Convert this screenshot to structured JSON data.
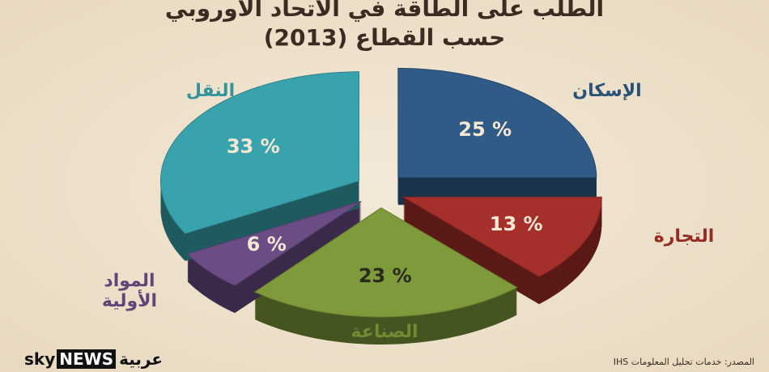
{
  "chart_data": {
    "type": "pie",
    "title": "الطلب على الطاقة في الاتحاد الأوروبي",
    "subtitle": "حسب القطاع (2013)",
    "categories": [
      "الإسكان",
      "التجارة",
      "الصناعة",
      "المواد الأولية",
      "النقل"
    ],
    "values": [
      25,
      13,
      23,
      6,
      33
    ],
    "value_labels": [
      "25 %",
      "13 %",
      "23 %",
      "6 %",
      "33 %"
    ],
    "colors": [
      "#2f5b86",
      "#a52f2a",
      "#7e9a3b",
      "#6b4d86",
      "#39a3ad"
    ],
    "source": "المصدر: خدمات تحليل المعلومات IHS",
    "logo": {
      "sky": "sky",
      "news": "NEWS",
      "arabic": "عربية"
    }
  }
}
